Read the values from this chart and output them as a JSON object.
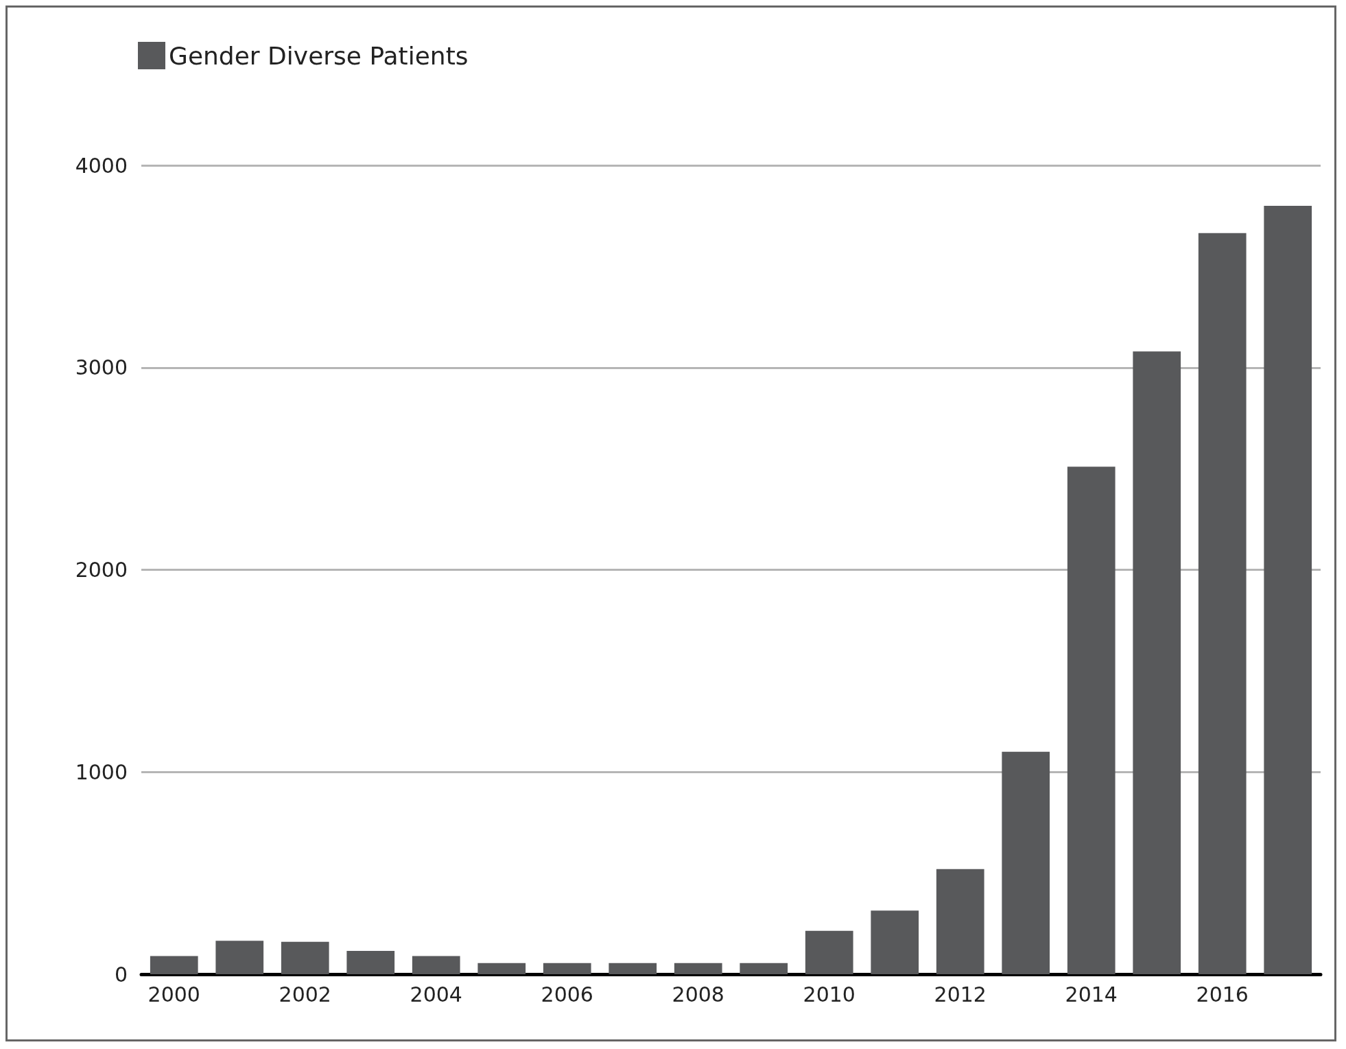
{
  "chart_data": {
    "type": "bar",
    "categories": [
      "2000",
      null,
      "2002",
      null,
      "2004",
      null,
      "2006",
      null,
      "2008",
      null,
      "2010",
      null,
      "2012",
      null,
      "2014",
      null,
      "2016",
      null
    ],
    "series": [
      {
        "name": "Gender Diverse Patients",
        "color": "#58595b",
        "values": [
          90,
          165,
          160,
          115,
          90,
          55,
          55,
          55,
          55,
          55,
          215,
          315,
          520,
          1100,
          2510,
          3080,
          3665,
          3800
        ]
      }
    ],
    "ylim": [
      0,
      4000
    ],
    "yticks": [
      0,
      1000,
      2000,
      3000,
      4000
    ],
    "grid": "y",
    "legend": "top left"
  }
}
